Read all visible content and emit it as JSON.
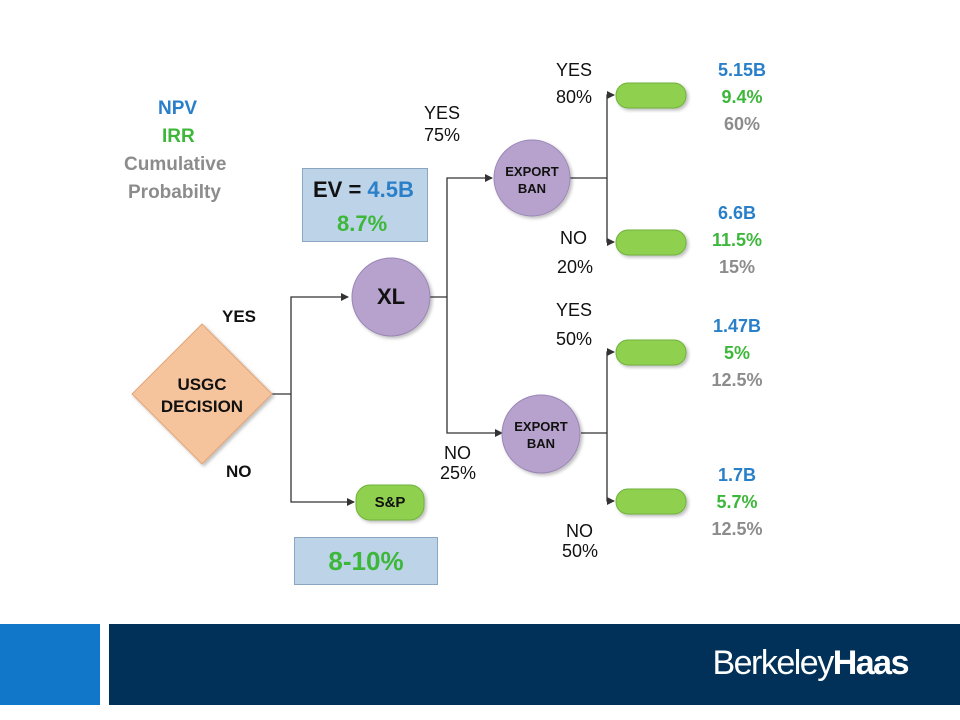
{
  "legend": {
    "npv": "NPV",
    "irr": "IRR",
    "cum_line1": "Cumulative",
    "cum_line2": "Probabilty"
  },
  "ev_box": {
    "prefix": "EV = ",
    "value": "4.5B",
    "irr": "8.7%"
  },
  "range_box": {
    "value": "8-10%"
  },
  "nodes": {
    "decision_line1": "USGC",
    "decision_line2": "DECISION",
    "xl": "XL",
    "sp": "S&P",
    "export_ban_line1": "EXPORT",
    "export_ban_line2": "BAN"
  },
  "branches": {
    "decision_yes": "YES",
    "decision_no": "NO",
    "xl_yes": "YES",
    "xl_yes_pct": "75%",
    "xl_no": "NO",
    "xl_no_pct": "25%",
    "b1_yes": "YES",
    "b1_yes_pct": "80%",
    "b1_no": "NO",
    "b1_no_pct": "20%",
    "b2_yes": "YES",
    "b2_yes_pct": "50%",
    "b2_no": "NO",
    "b2_no_pct": "50%"
  },
  "outcomes": [
    {
      "npv": "5.15B",
      "irr": "9.4%",
      "prob": "60%"
    },
    {
      "npv": "6.6B",
      "irr": "11.5%",
      "prob": "15%"
    },
    {
      "npv": "1.47B",
      "irr": "5%",
      "prob": "12.5%"
    },
    {
      "npv": "1.7B",
      "irr": "5.7%",
      "prob": "12.5%"
    }
  ],
  "footer": {
    "logo_part1": "Berkeley",
    "logo_part2": "Haas"
  },
  "colors": {
    "npv": "#2a7fc9",
    "irr": "#3db73a",
    "probability": "#8c8c8c",
    "decision_fill": "#f6c49c",
    "chance_fill": "#b6a2cc",
    "terminal_fill": "#8fd14f",
    "footer_accent": "#1177c9",
    "footer_bar": "#013158"
  }
}
